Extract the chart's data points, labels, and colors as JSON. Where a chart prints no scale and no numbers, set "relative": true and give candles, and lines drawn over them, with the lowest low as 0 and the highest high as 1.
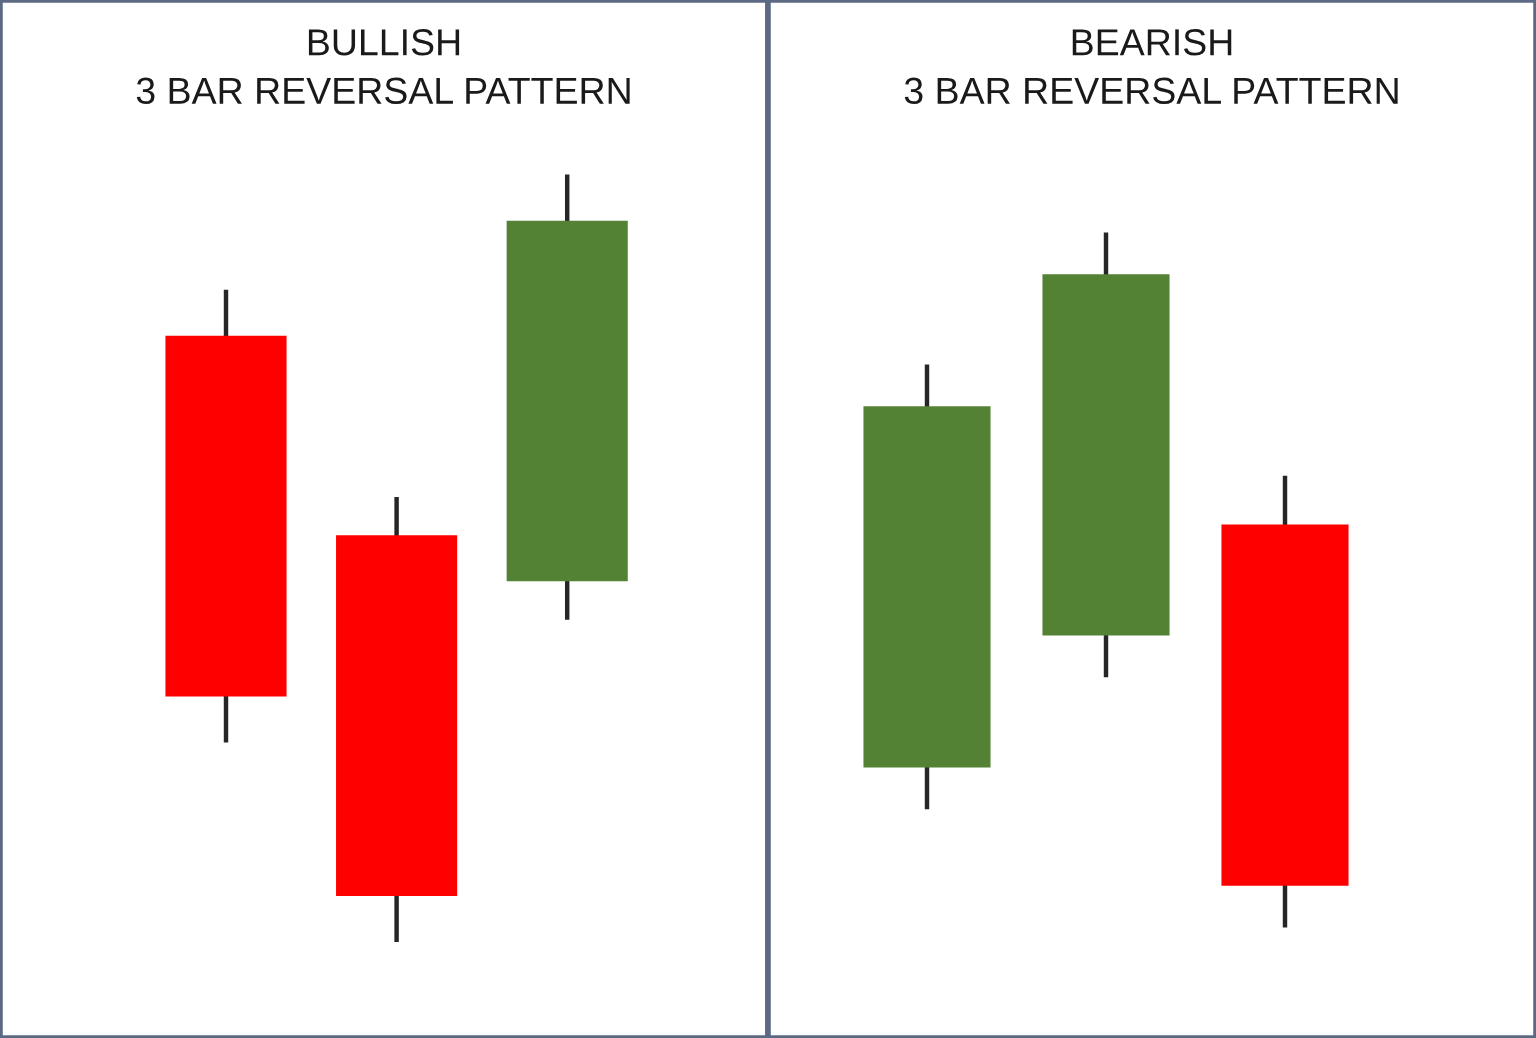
{
  "chart_data": [
    {
      "type": "candlestick",
      "title": "BULLISH\n3 BAR REVERSAL PATTERN",
      "categories": [
        null,
        null,
        null
      ],
      "ohlc": [
        [
          0.79,
          0.85,
          0.26,
          0.32
        ],
        [
          0.53,
          0.58,
          0,
          0.06
        ],
        [
          0.47,
          1,
          0.42,
          0.94
        ]
      ],
      "colors": [
        "#ff0000",
        "#ff0000",
        "#548235"
      ],
      "relative": true
    },
    {
      "type": "candlestick",
      "title": "BEARISH\n3 BAR REVERSAL PATTERN",
      "categories": [
        null,
        null,
        null
      ],
      "ohlc": [
        [
          0.23,
          0.81,
          0.17,
          0.75
        ],
        [
          0.42,
          1,
          0.36,
          0.94
        ],
        [
          0.58,
          0.65,
          0,
          0.06
        ]
      ],
      "colors": [
        "#548235",
        "#548235",
        "#ff0000"
      ],
      "relative": true
    }
  ]
}
